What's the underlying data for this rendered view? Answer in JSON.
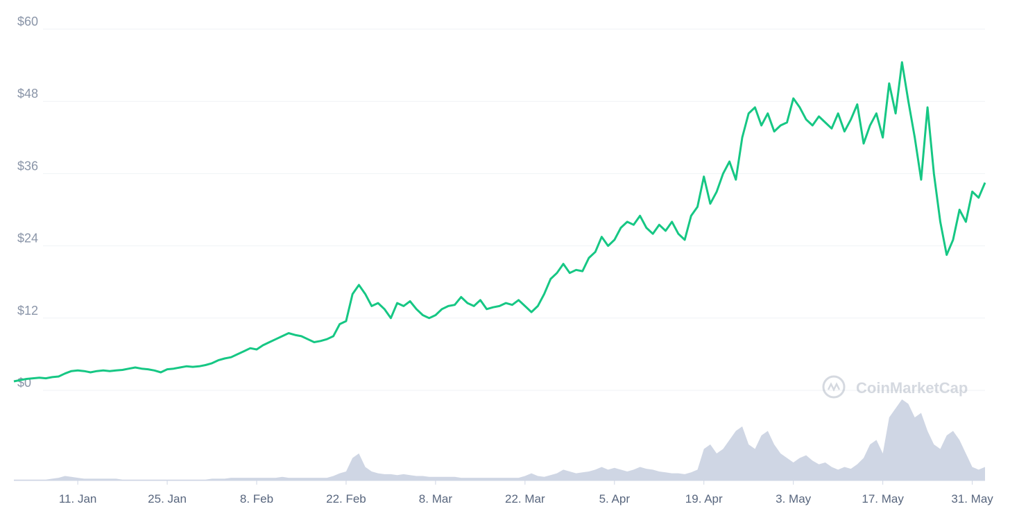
{
  "chart_data": {
    "type": "line",
    "categories": [
      null,
      null,
      null,
      null,
      null,
      null,
      null,
      null,
      null,
      null,
      "11. Jan",
      null,
      null,
      null,
      null,
      null,
      null,
      null,
      null,
      null,
      null,
      null,
      null,
      null,
      "25. Jan",
      null,
      null,
      null,
      null,
      null,
      null,
      null,
      null,
      null,
      null,
      null,
      null,
      null,
      "8. Feb",
      null,
      null,
      null,
      null,
      null,
      null,
      null,
      null,
      null,
      null,
      null,
      null,
      null,
      "22. Feb",
      null,
      null,
      null,
      null,
      null,
      null,
      null,
      null,
      null,
      null,
      null,
      null,
      null,
      "8. Mar",
      null,
      null,
      null,
      null,
      null,
      null,
      null,
      null,
      null,
      null,
      null,
      null,
      null,
      "22. Mar",
      null,
      null,
      null,
      null,
      null,
      null,
      null,
      null,
      null,
      null,
      null,
      null,
      null,
      "5. Apr",
      null,
      null,
      null,
      null,
      null,
      null,
      null,
      null,
      null,
      null,
      null,
      null,
      null,
      "19. Apr",
      null,
      null,
      null,
      null,
      null,
      null,
      null,
      null,
      null,
      null,
      null,
      null,
      null,
      "3. May",
      null,
      null,
      null,
      null,
      null,
      null,
      null,
      null,
      null,
      null,
      null,
      null,
      null,
      "17. May",
      null,
      null,
      null,
      null,
      null,
      null,
      null,
      null,
      null,
      null,
      null,
      null,
      null,
      "31. May",
      null,
      null
    ],
    "series": [
      {
        "color": "#16c784",
        "values": [
          1.5,
          1.7,
          1.9,
          2.0,
          2.1,
          2.0,
          2.2,
          2.3,
          2.8,
          3.2,
          3.3,
          3.2,
          3.0,
          3.2,
          3.3,
          3.2,
          3.3,
          3.4,
          3.6,
          3.8,
          3.6,
          3.5,
          3.3,
          3.0,
          3.5,
          3.6,
          3.8,
          4.0,
          3.9,
          4.0,
          4.2,
          4.5,
          5.0,
          5.3,
          5.5,
          6.0,
          6.5,
          7.0,
          6.8,
          7.5,
          8.0,
          8.5,
          9.0,
          9.5,
          9.2,
          9.0,
          8.5,
          8.0,
          8.2,
          8.5,
          9.0,
          11.0,
          11.5,
          16.0,
          17.5,
          16.0,
          14.0,
          14.5,
          13.5,
          12.0,
          14.5,
          14.0,
          14.8,
          13.5,
          12.5,
          12.0,
          12.5,
          13.5,
          14.0,
          14.2,
          15.5,
          14.5,
          14.0,
          15.0,
          13.5,
          13.8,
          14.0,
          14.5,
          14.2,
          15.0,
          14.0,
          13.0,
          14.0,
          16.0,
          18.5,
          19.5,
          21.0,
          19.5,
          20.0,
          19.8,
          22.0,
          23.0,
          25.5,
          24.0,
          25.0,
          27.0,
          28.0,
          27.5,
          29.0,
          27.0,
          26.0,
          27.5,
          26.5,
          28.0,
          26.0,
          25.0,
          29.0,
          30.5,
          35.5,
          31.0,
          33.0,
          36.0,
          38.0,
          35.0,
          42.0,
          46.0,
          47.0,
          44.0,
          46.0,
          43.0,
          44.0,
          44.5,
          48.5,
          47.0,
          45.0,
          44.0,
          45.5,
          44.5,
          43.5,
          46.0,
          43.0,
          45.0,
          47.5,
          41.0,
          44.0,
          46.0,
          42.0,
          51.0,
          46.0,
          54.5,
          48.0,
          42.0,
          35.0,
          47.0,
          36.0,
          28.0,
          22.5,
          25.0,
          30.0,
          28.0,
          33.0,
          32.0,
          34.5
        ]
      }
    ],
    "volume": {
      "color": "#cfd6e4",
      "ylim": [
        0,
        100
      ],
      "values": [
        1,
        1,
        1,
        1,
        1,
        1,
        2,
        3,
        5,
        4,
        3,
        2,
        2,
        2,
        2,
        2,
        2,
        1,
        1,
        1,
        1,
        1,
        1,
        1,
        1,
        1,
        1,
        1,
        1,
        1,
        1,
        2,
        2,
        2,
        3,
        3,
        3,
        3,
        3,
        3,
        3,
        3,
        4,
        3,
        3,
        3,
        3,
        3,
        3,
        3,
        5,
        8,
        10,
        25,
        30,
        15,
        10,
        8,
        7,
        7,
        6,
        7,
        6,
        5,
        5,
        4,
        4,
        4,
        4,
        4,
        3,
        3,
        3,
        3,
        3,
        3,
        3,
        3,
        3,
        3,
        5,
        8,
        5,
        4,
        6,
        8,
        12,
        10,
        8,
        9,
        10,
        12,
        15,
        12,
        14,
        12,
        10,
        12,
        15,
        13,
        12,
        10,
        9,
        8,
        8,
        7,
        9,
        12,
        35,
        40,
        30,
        35,
        45,
        55,
        60,
        40,
        35,
        50,
        55,
        40,
        30,
        25,
        20,
        25,
        28,
        22,
        18,
        20,
        15,
        12,
        15,
        13,
        18,
        25,
        40,
        45,
        30,
        70,
        80,
        90,
        85,
        70,
        75,
        55,
        40,
        35,
        50,
        55,
        45,
        30,
        15,
        12,
        15
      ]
    },
    "ylim": [
      0,
      60
    ],
    "yticks": [
      {
        "value": 0,
        "label": "$0"
      },
      {
        "value": 12,
        "label": "$12"
      },
      {
        "value": 24,
        "label": "$24"
      },
      {
        "value": 36,
        "label": "$36"
      },
      {
        "value": 48,
        "label": "$48"
      },
      {
        "value": 60,
        "label": "$60"
      }
    ],
    "grid": true,
    "watermark": "CoinMarketCap"
  }
}
